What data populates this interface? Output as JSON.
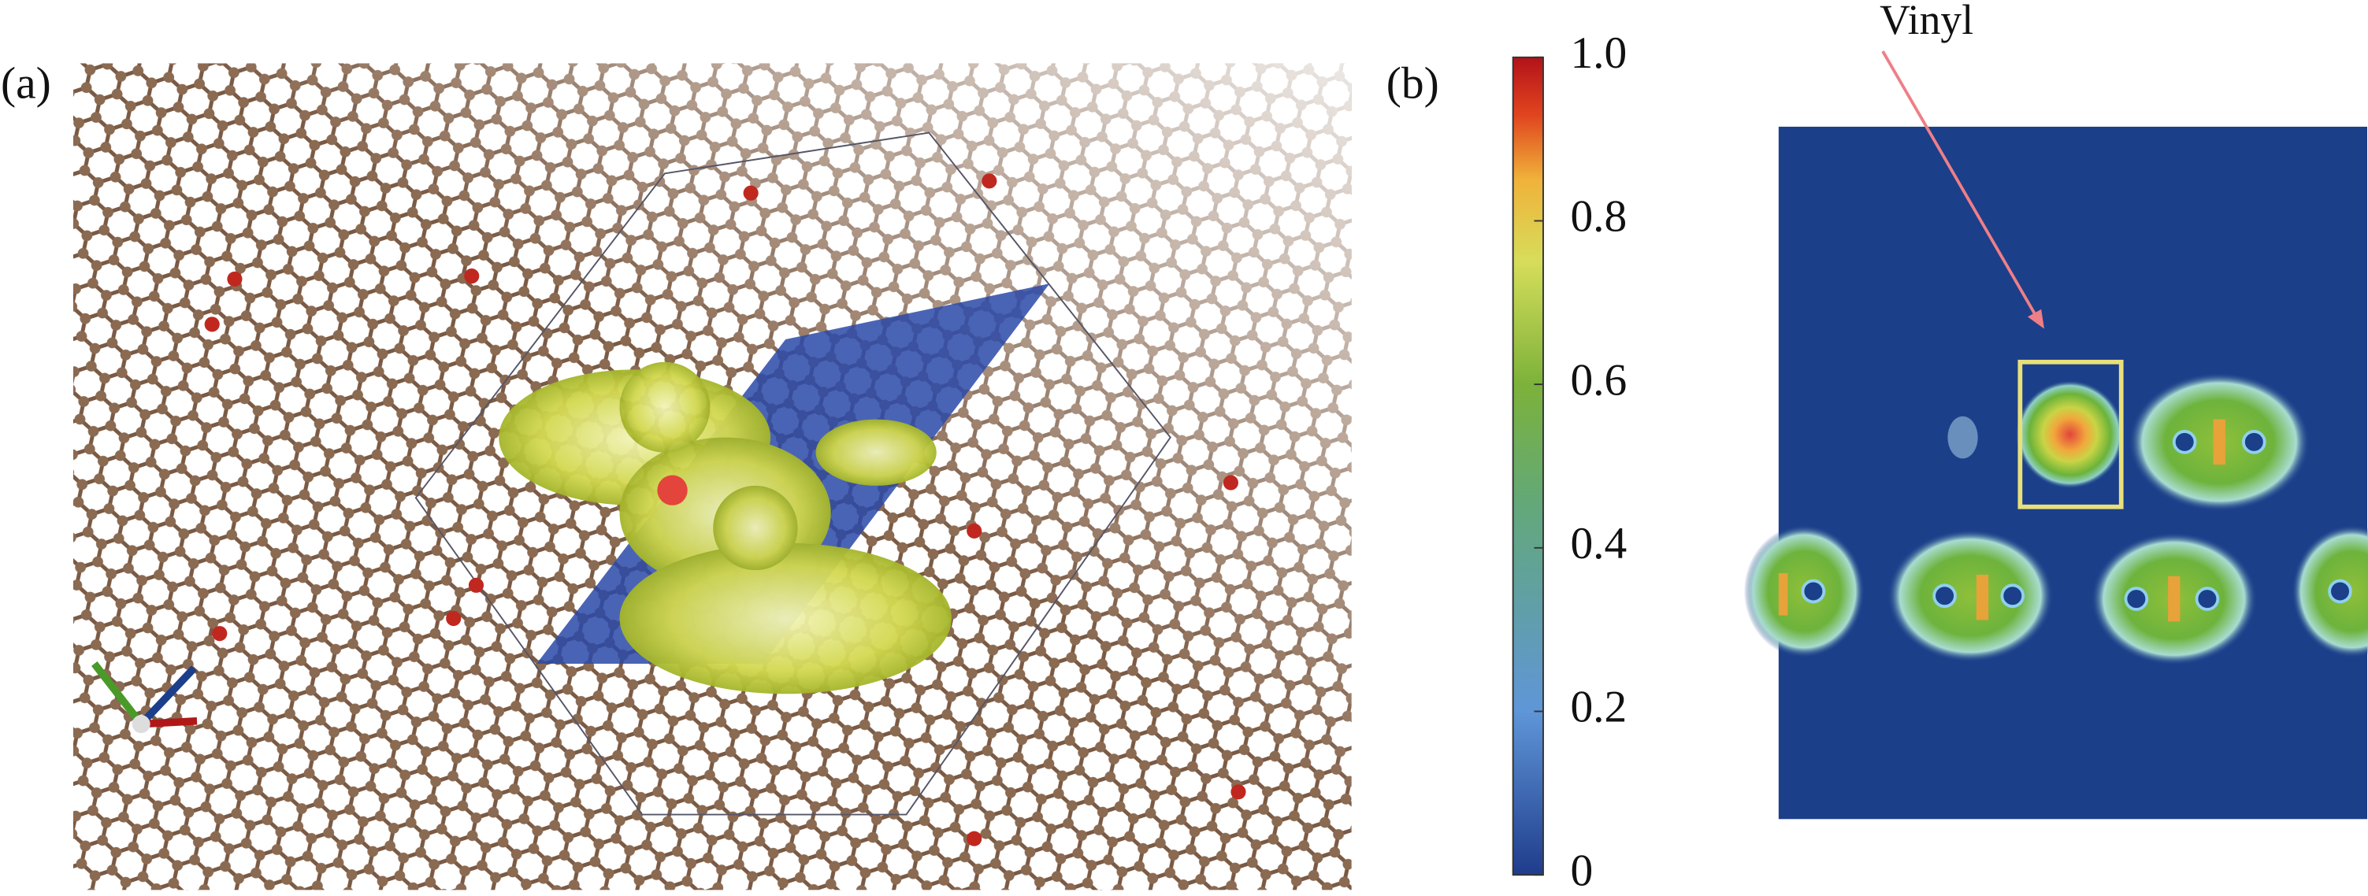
{
  "panel_a": {
    "label": "(a)"
  },
  "panel_b": {
    "label": "(b)",
    "annotation": "Vinyl"
  },
  "colorbar": {
    "range": [
      0,
      1
    ],
    "ticks": [
      0,
      0.2,
      0.4,
      0.6,
      0.8,
      {
        "value": 1,
        "label": "1.0"
      }
    ]
  }
}
